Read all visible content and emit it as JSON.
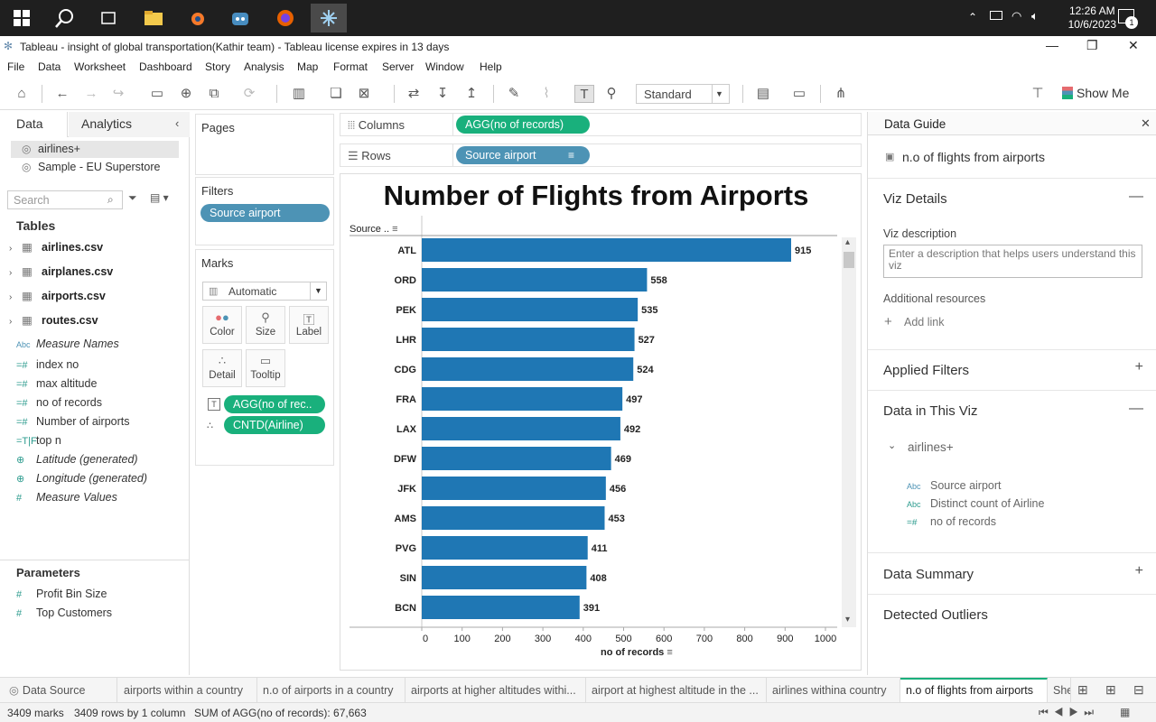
{
  "taskbar": {
    "time": "12:26 AM",
    "date": "10/6/2023",
    "notification_count": "1"
  },
  "window": {
    "title": "Tableau - insight of global transportation(Kathir team) - Tableau license expires in 13 days"
  },
  "menu": [
    "File",
    "Data",
    "Worksheet",
    "Dashboard",
    "Story",
    "Analysis",
    "Map",
    "Format",
    "Server",
    "Window",
    "Help"
  ],
  "toolbar": {
    "fit_mode": "Standard",
    "show_me": "Show Me"
  },
  "datapane": {
    "tab_data": "Data",
    "tab_analytics": "Analytics",
    "sources": [
      "airlines+",
      "Sample - EU Superstore"
    ],
    "search_placeholder": "Search",
    "tables_heading": "Tables",
    "tables": [
      "airlines.csv",
      "airplanes.csv",
      "airports.csv",
      "routes.csv"
    ],
    "fields": [
      {
        "icon": "Abc",
        "name": "Measure Names",
        "italic": true
      },
      {
        "icon": "#",
        "name": "index no",
        "italic": false
      },
      {
        "icon": "#",
        "name": "max altitude",
        "italic": false
      },
      {
        "icon": "#",
        "name": "no of records",
        "italic": false
      },
      {
        "icon": "#",
        "name": "Number of airports",
        "italic": false
      },
      {
        "icon": "T|F",
        "name": "top n",
        "italic": false
      },
      {
        "icon": "globe",
        "name": "Latitude (generated)",
        "italic": true
      },
      {
        "icon": "globe",
        "name": "Longitude (generated)",
        "italic": true
      },
      {
        "icon": "#",
        "name": "Measure Values",
        "italic": true
      }
    ],
    "parameters_heading": "Parameters",
    "parameters": [
      "Profit Bin Size",
      "Top Customers"
    ]
  },
  "cards": {
    "pages": "Pages",
    "filters": "Filters",
    "filter_pill": "Source airport",
    "marks": "Marks",
    "mark_type": "Automatic",
    "buttons": [
      "Color",
      "Size",
      "Label",
      "Detail",
      "Tooltip"
    ],
    "mark_pills": [
      "AGG(no of rec..",
      "CNTD(Airline)"
    ]
  },
  "shelves": {
    "columns_label": "Columns",
    "columns_pill": "AGG(no of records)",
    "rows_label": "Rows",
    "rows_pill": "Source airport"
  },
  "chart_data": {
    "type": "bar",
    "orientation": "horizontal",
    "title": "Number of Flights from Airports",
    "xlabel": "no of records",
    "ylabel": "Source ..",
    "categories": [
      "ATL",
      "ORD",
      "PEK",
      "LHR",
      "CDG",
      "FRA",
      "LAX",
      "DFW",
      "JFK",
      "AMS",
      "PVG",
      "SIN",
      "BCN"
    ],
    "values": [
      915,
      558,
      535,
      527,
      524,
      497,
      492,
      469,
      456,
      453,
      411,
      408,
      391
    ],
    "xticks": [
      0,
      100,
      200,
      300,
      400,
      500,
      600,
      700,
      800,
      900,
      1000
    ],
    "xlim": [
      0,
      1000
    ],
    "bar_color": "#1f77b4"
  },
  "guide": {
    "title": "Data Guide",
    "sheet_name": "n.o of flights from airports",
    "viz_details": "Viz Details",
    "viz_description_label": "Viz description",
    "viz_description_placeholder": "Enter a description that helps users understand this viz",
    "additional_resources": "Additional resources",
    "add_link": "Add link",
    "applied_filters": "Applied Filters",
    "data_in_viz": "Data in This Viz",
    "datasource": "airlines+",
    "fields": [
      {
        "icon": "Abc",
        "name": "Source airport"
      },
      {
        "icon": "Abc",
        "name": "Distinct count of Airline"
      },
      {
        "icon": "=#",
        "name": "no of records"
      }
    ],
    "data_summary": "Data Summary",
    "detected_outliers": "Detected Outliers"
  },
  "sheet_tabs": [
    "Data Source",
    "airports within a country",
    "n.o of airports in a country",
    "airports at higher altitudes withi...",
    "airport at highest altitude in the ...",
    "airlines withina country",
    "n.o of flights from airports",
    "She"
  ],
  "status": {
    "marks": "3409 marks",
    "rows": "3409 rows by 1 column",
    "sum": "SUM of AGG(no of records): 67,663"
  }
}
